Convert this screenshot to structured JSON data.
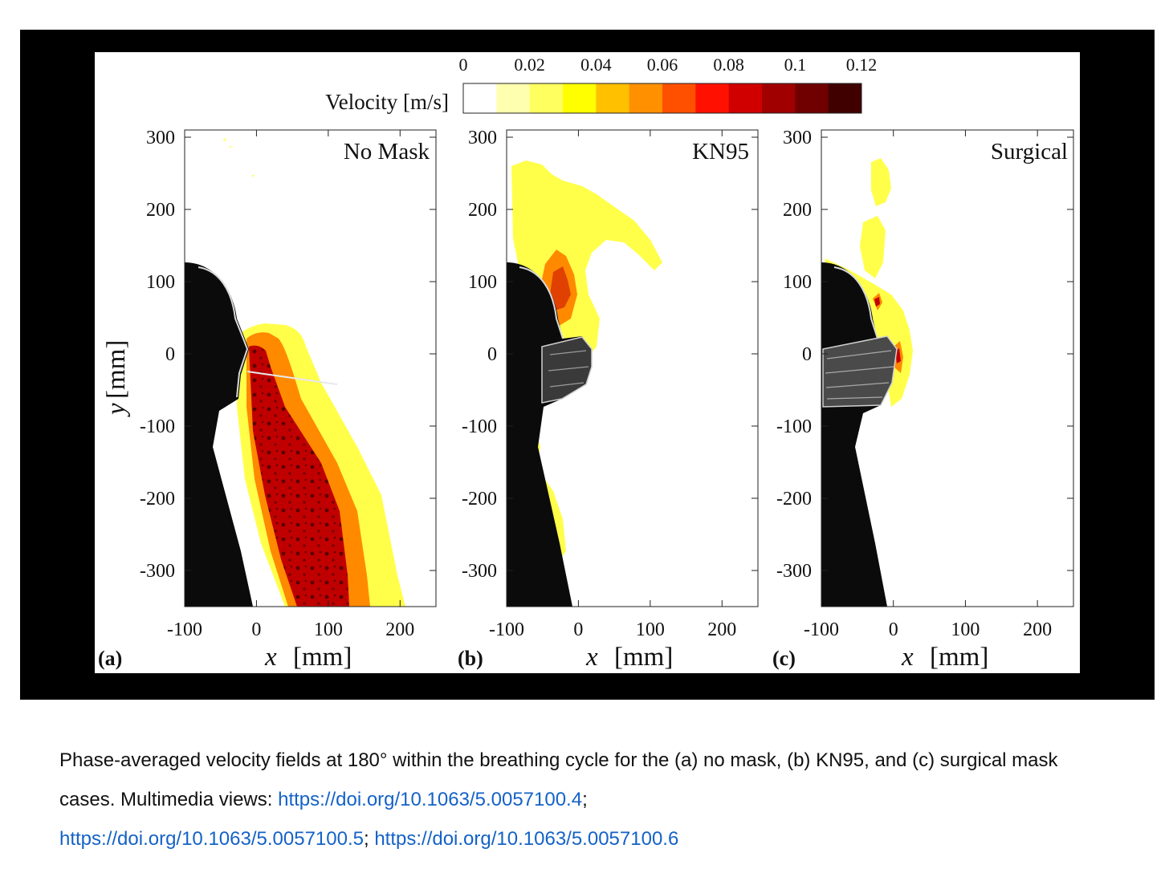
{
  "figure": {
    "colorbar": {
      "label": "Velocity [m/s]",
      "ticks": [
        "0",
        "0.02",
        "0.04",
        "0.06",
        "0.08",
        "0.1",
        "0.12"
      ],
      "range": [
        0,
        0.12
      ],
      "colors": [
        "#ffffff",
        "#ffffb0",
        "#ffff60",
        "#ffff00",
        "#ffc000",
        "#ff9000",
        "#ff5000",
        "#ff1000",
        "#d00000",
        "#a00000",
        "#700000",
        "#400000"
      ]
    },
    "panels": [
      {
        "id": "a",
        "title": "No Mask",
        "letter": "(a)"
      },
      {
        "id": "b",
        "title": "KN95",
        "letter": "(b)"
      },
      {
        "id": "c",
        "title": "Surgical",
        "letter": "(c)"
      }
    ],
    "x_ticks": [
      "-100",
      "0",
      "100",
      "200"
    ],
    "y_ticks": [
      "300",
      "200",
      "100",
      "0",
      "-100",
      "-200",
      "-300"
    ],
    "xlabel_var": "x",
    "xlabel_unit": "[mm]",
    "ylabel_var": "y",
    "ylabel_unit": "[mm]"
  },
  "caption": {
    "text": "Phase-averaged velocity fields at 180° within the breathing cycle for the (a) no mask, (b) KN95, and (c) surgical mask cases. Multimedia views: ",
    "links": [
      "https://doi.org/10.1063/5.0057100.4",
      "https://doi.org/10.1063/5.0057100.5",
      "https://doi.org/10.1063/5.0057100.6"
    ],
    "separator": "; "
  }
}
